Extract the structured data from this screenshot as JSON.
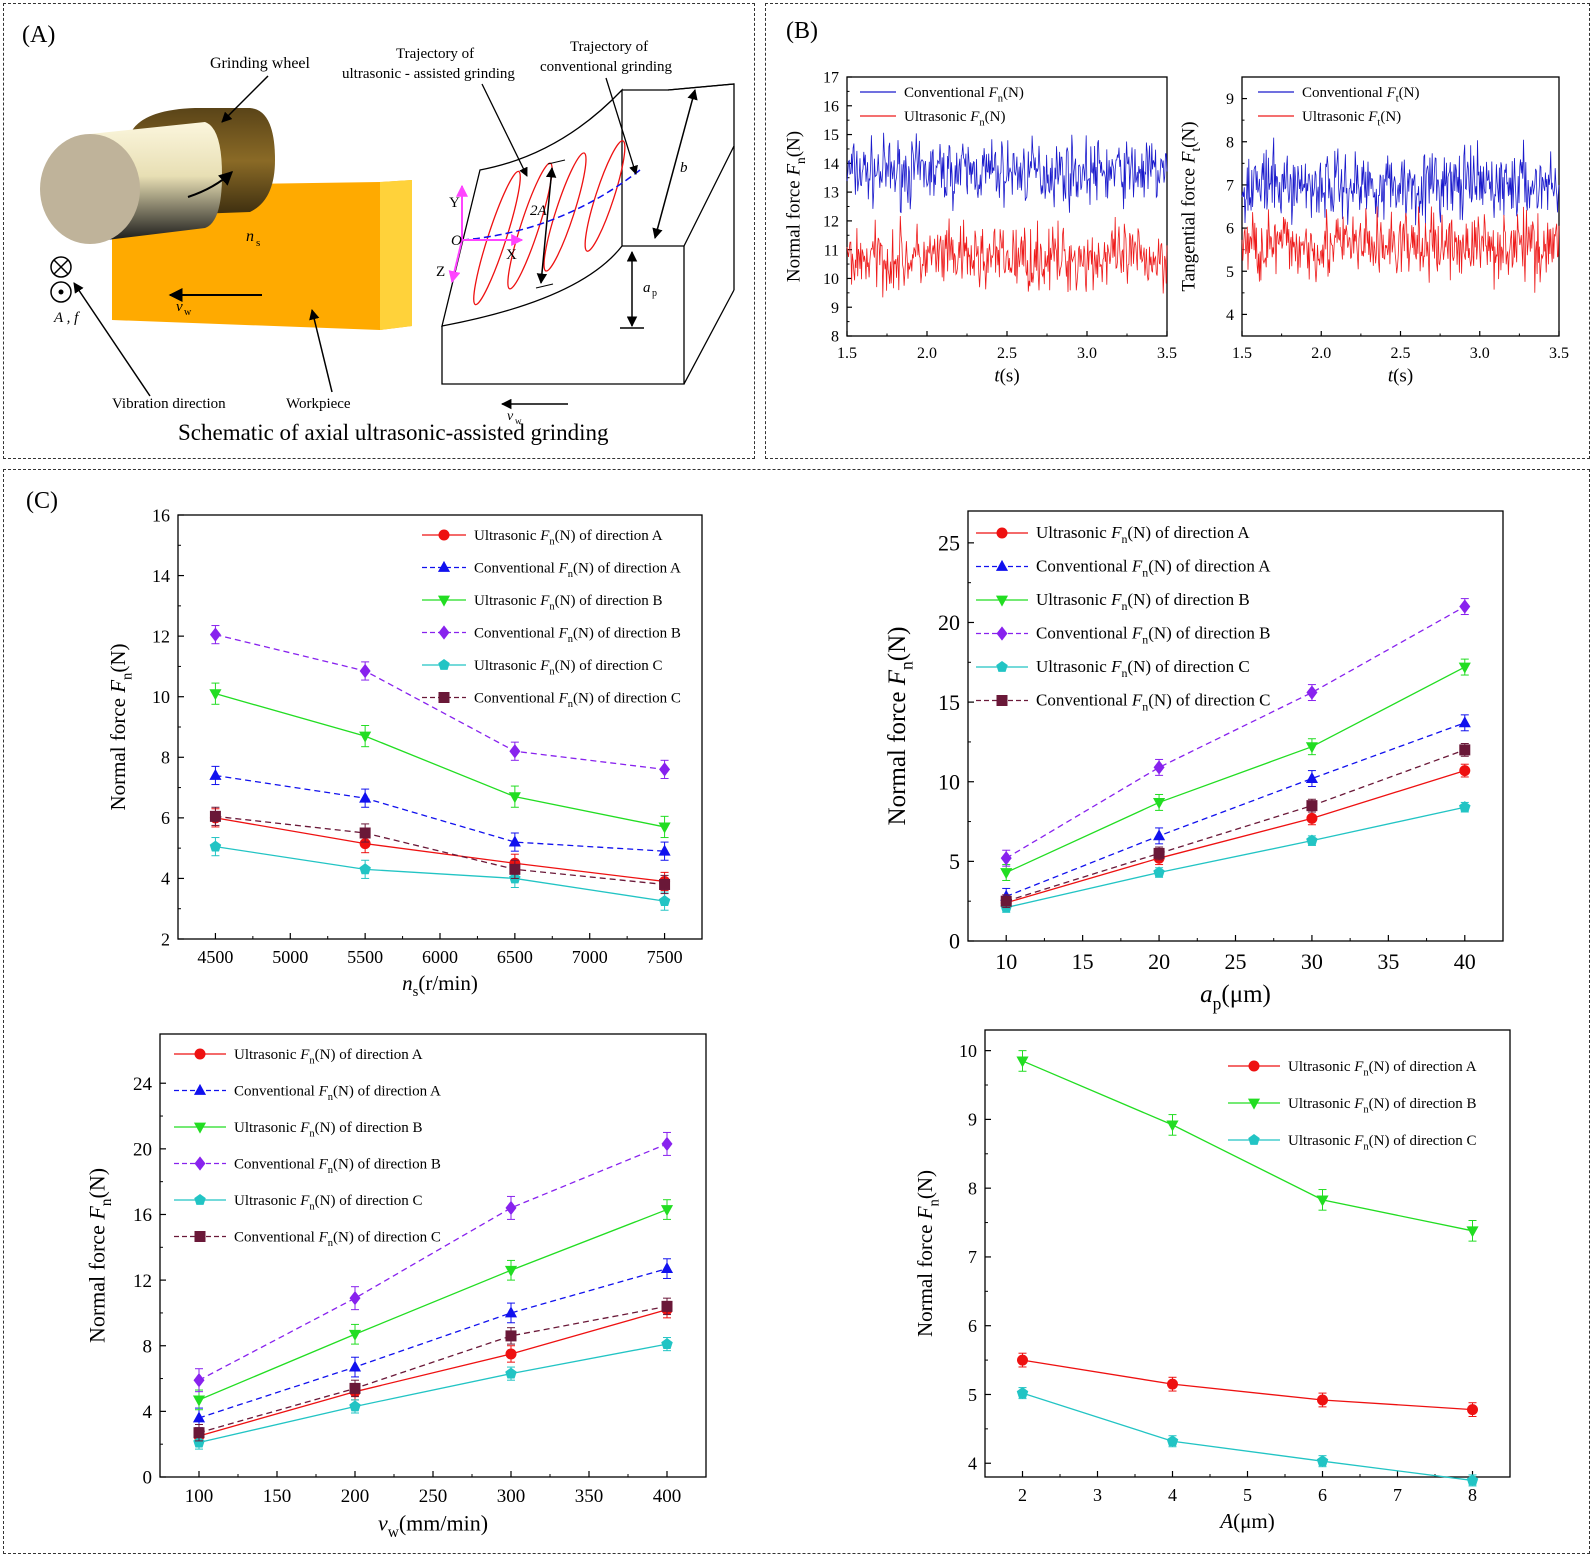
{
  "panel_a": {
    "label": "(A)",
    "caption": "Schematic of axial ultrasonic-assisted grinding",
    "labels": {
      "grinding_wheel": "Grinding wheel",
      "workpiece": "Workpiece",
      "vibration_direction": "Vibration direction",
      "traj_ultrasonic_1": "Trajectory of",
      "traj_ultrasonic_2": "ultrasonic - assisted grinding",
      "traj_conventional_1": "Trajectory of",
      "traj_conventional_2": "conventional grinding",
      "ns_main": "n",
      "ns_sub": "s",
      "vw_main": "v",
      "vw_sub": "w",
      "af": "A , f",
      "b": "b",
      "ap_main": "a",
      "ap_sub": "p",
      "two_a": "2A",
      "axis_x": "X",
      "axis_y": "Y",
      "axis_z": "Z",
      "origin": "O"
    }
  },
  "panel_b": {
    "label": "(B)"
  },
  "panel_c": {
    "label": "(C)"
  },
  "colors": {
    "red": "#ee1111",
    "blue": "#1111ee",
    "green": "#22dd22",
    "purple": "#8822ee",
    "cyan": "#22c4c4",
    "maroon": "#6a1838",
    "trace_blue": "#1a1acc",
    "trace_red": "#ee1a1a"
  },
  "chart_data": [
    {
      "id": "b_normal",
      "type": "line",
      "xlabel": "t(s)",
      "ylabel": "Normal force Fn(N)",
      "xlim": [
        1.5,
        3.5
      ],
      "ylim": [
        8,
        17
      ],
      "xticks": [
        1.5,
        2.0,
        2.5,
        3.0,
        3.5
      ],
      "xtick_labels": [
        "1.5",
        "2.0",
        "2.5",
        "3.0",
        "3.5"
      ],
      "yticks": [
        8,
        9,
        10,
        11,
        12,
        13,
        14,
        15,
        16,
        17
      ],
      "legend": "top-left",
      "series": [
        {
          "name": "Conventional Fn(N)",
          "mean": 13.7,
          "min": 12.0,
          "max": 15.3
        },
        {
          "name": "Ultrasonic Fn(N)",
          "mean": 10.7,
          "min": 9.1,
          "max": 12.5
        }
      ]
    },
    {
      "id": "b_tangential",
      "type": "line",
      "xlabel": "t(s)",
      "ylabel": "Tangential force Ft(N)",
      "xlim": [
        1.5,
        3.5
      ],
      "ylim": [
        3.5,
        9.5
      ],
      "xticks": [
        1.5,
        2.0,
        2.5,
        3.0,
        3.5
      ],
      "xtick_labels": [
        "1.5",
        "2.0",
        "2.5",
        "3.0",
        "3.5"
      ],
      "yticks": [
        4,
        5,
        6,
        7,
        8,
        9
      ],
      "legend": "top-left",
      "series": [
        {
          "name": "Conventional Ft(N)",
          "mean": 7.0,
          "min": 6.0,
          "max": 8.4
        },
        {
          "name": "Ultrasonic Ft(N)",
          "mean": 5.6,
          "min": 4.1,
          "max": 6.5
        }
      ]
    },
    {
      "id": "c1",
      "type": "line",
      "xlabel": "ns(r/min)",
      "ylabel": "Normal force Fn(N)",
      "x": [
        4500,
        5500,
        6500,
        7500
      ],
      "xlim": [
        4250,
        7750
      ],
      "ylim": [
        2,
        16
      ],
      "xticks": [
        4500,
        5000,
        5500,
        6000,
        6500,
        7000,
        7500
      ],
      "yticks": [
        2,
        4,
        6,
        8,
        10,
        12,
        14,
        16
      ],
      "legend": "top-right",
      "series": [
        {
          "name": "Ultrasonic Fn(N) of direction A",
          "values": [
            6.0,
            5.15,
            4.5,
            3.9
          ],
          "err": 0.3
        },
        {
          "name": "Conventional Fn(N) of direction A",
          "values": [
            7.4,
            6.65,
            5.2,
            4.9
          ],
          "err": 0.3
        },
        {
          "name": "Ultrasonic Fn(N) of direction B",
          "values": [
            10.1,
            8.7,
            6.7,
            5.7
          ],
          "err": 0.35
        },
        {
          "name": "Conventional Fn(N) of direction B",
          "values": [
            12.05,
            10.85,
            8.2,
            7.6
          ],
          "err": 0.3
        },
        {
          "name": "Ultrasonic Fn(N) of direction C",
          "values": [
            5.05,
            4.3,
            4.0,
            3.25
          ],
          "err": 0.3
        },
        {
          "name": "Conventional Fn(N) of direction C",
          "values": [
            6.05,
            5.5,
            4.3,
            3.8
          ],
          "err": 0.3
        }
      ]
    },
    {
      "id": "c2",
      "type": "line",
      "xlabel": "ap(μm)",
      "ylabel": "Normal force Fn(N)",
      "x": [
        10,
        20,
        30,
        40
      ],
      "xlim": [
        7.5,
        42.5
      ],
      "ylim": [
        0,
        27
      ],
      "xticks": [
        10,
        15,
        20,
        25,
        30,
        35,
        40
      ],
      "yticks": [
        0,
        5,
        10,
        15,
        20,
        25
      ],
      "legend": "top-left",
      "series": [
        {
          "name": "Ultrasonic Fn(N) of direction A",
          "values": [
            2.4,
            5.2,
            7.7,
            10.7
          ],
          "err": 0.4
        },
        {
          "name": "Conventional Fn(N) of direction A",
          "values": [
            2.8,
            6.6,
            10.2,
            13.7
          ],
          "err": 0.5
        },
        {
          "name": "Ultrasonic Fn(N) of direction B",
          "values": [
            4.3,
            8.7,
            12.2,
            17.2
          ],
          "err": 0.5
        },
        {
          "name": "Conventional Fn(N) of direction B",
          "values": [
            5.2,
            10.9,
            15.6,
            21.0
          ],
          "err": 0.5
        },
        {
          "name": "Ultrasonic Fn(N) of direction C",
          "values": [
            2.1,
            4.3,
            6.3,
            8.4
          ],
          "err": 0.3
        },
        {
          "name": "Conventional Fn(N) of direction C",
          "values": [
            2.5,
            5.5,
            8.5,
            12.0
          ],
          "err": 0.4
        }
      ]
    },
    {
      "id": "c3",
      "type": "line",
      "xlabel": "vw(mm/min)",
      "ylabel": "Normal force Fn(N)",
      "x": [
        100,
        200,
        300,
        400
      ],
      "xlim": [
        75,
        425
      ],
      "ylim": [
        0,
        27
      ],
      "xticks": [
        100,
        150,
        200,
        250,
        300,
        350,
        400
      ],
      "yticks": [
        0,
        4,
        8,
        12,
        16,
        20,
        24
      ],
      "legend": "top-left",
      "series": [
        {
          "name": "Ultrasonic Fn(N) of direction A",
          "values": [
            2.5,
            5.2,
            7.5,
            10.2
          ],
          "err": 0.5
        },
        {
          "name": "Conventional Fn(N) of direction A",
          "values": [
            3.6,
            6.7,
            10.0,
            12.7
          ],
          "err": 0.6
        },
        {
          "name": "Ultrasonic Fn(N) of direction B",
          "values": [
            4.7,
            8.7,
            12.6,
            16.3
          ],
          "err": 0.6
        },
        {
          "name": "Conventional Fn(N) of direction B",
          "values": [
            5.9,
            10.9,
            16.4,
            20.3
          ],
          "err": 0.7
        },
        {
          "name": "Ultrasonic Fn(N) of direction C",
          "values": [
            2.1,
            4.3,
            6.3,
            8.1
          ],
          "err": 0.4
        },
        {
          "name": "Conventional Fn(N) of direction C",
          "values": [
            2.7,
            5.4,
            8.6,
            10.4
          ],
          "err": 0.5
        }
      ]
    },
    {
      "id": "c4",
      "type": "line",
      "xlabel": "A(μm)",
      "ylabel": "Normal force Fn(N)",
      "x": [
        2,
        4,
        6,
        8
      ],
      "xlim": [
        1.5,
        8.5
      ],
      "ylim": [
        3.8,
        10.3
      ],
      "xticks": [
        2,
        3,
        4,
        5,
        6,
        7,
        8
      ],
      "yticks": [
        4,
        5,
        6,
        7,
        8,
        9,
        10
      ],
      "legend": "top-right",
      "series": [
        {
          "name": "Ultrasonic Fn(N) of direction A",
          "values": [
            5.5,
            5.15,
            4.92,
            4.78
          ],
          "err": 0.1
        },
        {
          "name": "Ultrasonic Fn(N) of direction B",
          "values": [
            9.85,
            8.92,
            7.83,
            7.38
          ],
          "err": 0.15
        },
        {
          "name": "Ultrasonic Fn(N) of direction C",
          "values": [
            5.02,
            4.32,
            4.03,
            3.75
          ],
          "err": 0.08
        }
      ]
    }
  ]
}
